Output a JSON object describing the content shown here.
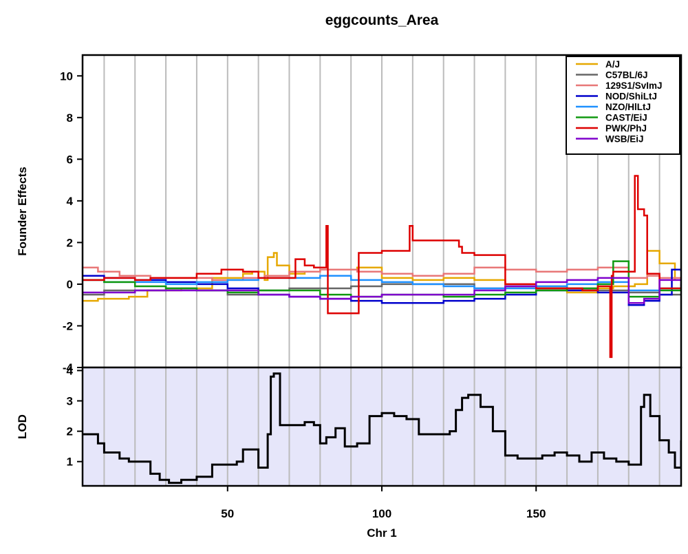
{
  "chart_data": {
    "type": "line",
    "title": "eggcounts_Area",
    "xlabel": "Chr 1",
    "xlim": [
      3,
      197
    ],
    "xticks": [
      50,
      100,
      150
    ],
    "xtick_labels": [
      "50",
      "100",
      "150"
    ],
    "chromosome_band_lines": [
      10,
      20,
      30,
      40,
      50,
      60,
      70,
      80,
      90,
      100,
      110,
      120,
      130,
      140,
      150,
      160,
      170,
      180,
      190
    ],
    "panels": [
      {
        "ylabel": "Founder Effects",
        "ylim": [
          -4,
          11
        ],
        "yticks": [
          -4,
          -2,
          0,
          2,
          4,
          6,
          8,
          10
        ],
        "ytick_labels": [
          "-4",
          "-2",
          "0",
          "2",
          "4",
          "6",
          "8",
          "10"
        ],
        "background": "#ffffff",
        "legend_position": "top-right",
        "series": [
          {
            "name": "A/J",
            "color": "#E6A800",
            "x": [
              3,
              8,
              18,
              24,
              35,
              45,
              55,
              58,
              62,
              63,
              65,
              66,
              70,
              75,
              80,
              92,
              100,
              110,
              120,
              130,
              140,
              150,
              160,
              170,
              175,
              182,
              186,
              190,
              195
            ],
            "y": [
              -0.8,
              -0.7,
              -0.6,
              -0.3,
              -0.2,
              0.3,
              0.5,
              0.6,
              0.2,
              1.3,
              1.5,
              0.9,
              0.5,
              0.6,
              0.7,
              0.8,
              0.3,
              0.2,
              0.3,
              0.2,
              -0.1,
              -0.2,
              -0.4,
              -0.2,
              -0.1,
              0.0,
              1.6,
              1.0,
              0.2
            ]
          },
          {
            "name": "C57BL/6J",
            "color": "#666666",
            "x": [
              3,
              10,
              20,
              30,
              40,
              50,
              60,
              70,
              80,
              90,
              100,
              110,
              120,
              130,
              140,
              150,
              160,
              170,
              180,
              190,
              197
            ],
            "y": [
              -0.5,
              -0.3,
              -0.3,
              -0.2,
              -0.3,
              -0.5,
              -0.3,
              -0.2,
              -0.2,
              -0.1,
              0.0,
              0.0,
              0.0,
              -0.2,
              -0.1,
              -0.1,
              -0.2,
              -0.3,
              -0.4,
              -0.5,
              -0.5
            ]
          },
          {
            "name": "129S1/SvImJ",
            "color": "#E87777",
            "x": [
              3,
              8,
              15,
              25,
              35,
              45,
              55,
              62,
              70,
              80,
              92,
              100,
              110,
              120,
              130,
              140,
              150,
              160,
              170,
              180,
              186,
              190,
              197
            ],
            "y": [
              0.8,
              0.6,
              0.4,
              0.3,
              0.3,
              0.2,
              0.3,
              0.4,
              0.6,
              0.7,
              0.6,
              0.5,
              0.4,
              0.5,
              0.8,
              0.7,
              0.6,
              0.7,
              0.8,
              0.3,
              0.4,
              0.3,
              0.2
            ]
          },
          {
            "name": "NOD/ShiLtJ",
            "color": "#0000CC",
            "x": [
              3,
              10,
              20,
              30,
              40,
              50,
              60,
              70,
              80,
              90,
              100,
              110,
              120,
              130,
              140,
              150,
              160,
              170,
              180,
              185,
              190,
              194,
              197
            ],
            "y": [
              0.4,
              0.3,
              0.2,
              0.1,
              0.0,
              -0.2,
              -0.5,
              -0.6,
              -0.7,
              -0.8,
              -0.9,
              -0.9,
              -0.8,
              -0.7,
              -0.5,
              -0.3,
              -0.3,
              -0.4,
              -1.0,
              -0.8,
              -0.5,
              0.7,
              0.6
            ]
          },
          {
            "name": "NZO/HlLtJ",
            "color": "#1E90FF",
            "x": [
              3,
              10,
              20,
              30,
              40,
              50,
              60,
              70,
              80,
              90,
              100,
              110,
              120,
              130,
              140,
              150,
              160,
              170,
              180,
              190,
              197
            ],
            "y": [
              0.2,
              0.1,
              0.1,
              0.0,
              0.1,
              0.2,
              0.3,
              0.3,
              0.4,
              0.2,
              0.1,
              0.0,
              -0.1,
              -0.2,
              -0.2,
              -0.1,
              0.0,
              0.1,
              -0.3,
              -0.2,
              0.0
            ]
          },
          {
            "name": "CAST/EiJ",
            "color": "#119911",
            "x": [
              3,
              10,
              20,
              30,
              40,
              50,
              60,
              70,
              80,
              90,
              100,
              110,
              120,
              130,
              140,
              150,
              160,
              170,
              175,
              180,
              190,
              197
            ],
            "y": [
              0.2,
              0.1,
              -0.1,
              -0.2,
              -0.3,
              -0.4,
              -0.3,
              -0.3,
              -0.5,
              -0.6,
              -0.5,
              -0.5,
              -0.6,
              -0.5,
              -0.4,
              -0.3,
              -0.2,
              0.0,
              1.1,
              -0.6,
              -0.3,
              -0.2
            ]
          },
          {
            "name": "PWK/PhJ",
            "color": "#DD0000",
            "x": [
              3,
              10,
              20,
              25,
              30,
              40,
              48,
              50,
              55,
              60,
              65,
              72,
              75,
              78,
              80,
              82,
              82.5,
              92,
              92.5,
              100,
              108,
              109,
              110,
              120,
              125,
              126,
              130,
              140,
              150,
              160,
              165,
              170,
              174,
              174.5,
              175,
              180,
              182,
              183,
              185,
              186,
              190,
              197
            ],
            "y": [
              0.2,
              0.3,
              0.2,
              0.3,
              0.3,
              0.5,
              0.7,
              0.7,
              0.6,
              0.3,
              0.3,
              1.2,
              0.9,
              0.8,
              0.8,
              2.8,
              -1.4,
              -1.4,
              1.5,
              1.6,
              1.6,
              2.8,
              2.1,
              2.1,
              1.8,
              1.5,
              1.4,
              0.0,
              -0.2,
              -0.2,
              -0.3,
              -0.1,
              -3.5,
              0.4,
              0.6,
              0.6,
              5.2,
              3.6,
              3.3,
              0.5,
              -0.2,
              0.0
            ]
          },
          {
            "name": "WSB/EiJ",
            "color": "#7F00CC",
            "x": [
              3,
              10,
              20,
              30,
              40,
              50,
              60,
              70,
              80,
              90,
              100,
              110,
              120,
              130,
              140,
              150,
              160,
              170,
              180,
              185,
              190,
              197
            ],
            "y": [
              -0.4,
              -0.4,
              -0.3,
              -0.3,
              -0.3,
              -0.3,
              -0.5,
              -0.6,
              -0.7,
              -0.6,
              -0.5,
              -0.5,
              -0.5,
              -0.3,
              -0.1,
              0.1,
              0.2,
              0.3,
              -0.9,
              -0.7,
              0.2,
              -0.1
            ]
          }
        ]
      },
      {
        "ylabel": "LOD",
        "ylim": [
          0.2,
          4.1
        ],
        "yticks": [
          1,
          2,
          3,
          4
        ],
        "ytick_labels": [
          "1",
          "2",
          "3",
          "4"
        ],
        "background": "#E6E6FA",
        "series": [
          {
            "name": "",
            "color": "#000000",
            "x": [
              3,
              5,
              8,
              10,
              15,
              18,
              25,
              28,
              31,
              35,
              40,
              45,
              50,
              53,
              55,
              58,
              60,
              62,
              63,
              64,
              65,
              67,
              70,
              75,
              78,
              80,
              82,
              85,
              88,
              92,
              96,
              100,
              104,
              108,
              112,
              118,
              122,
              124,
              126,
              128,
              132,
              136,
              140,
              144,
              148,
              152,
              156,
              160,
              164,
              168,
              172,
              176,
              180,
              184,
              185,
              187,
              190,
              193,
              195,
              197
            ],
            "y": [
              1.9,
              1.9,
              1.6,
              1.3,
              1.1,
              1.0,
              0.6,
              0.4,
              0.3,
              0.4,
              0.5,
              0.9,
              0.9,
              1.0,
              1.4,
              1.4,
              0.8,
              0.8,
              1.9,
              3.8,
              3.9,
              2.2,
              2.2,
              2.3,
              2.2,
              1.6,
              1.8,
              2.1,
              1.5,
              1.6,
              2.5,
              2.6,
              2.5,
              2.4,
              1.9,
              1.9,
              2.0,
              2.7,
              3.1,
              3.2,
              2.8,
              2.0,
              1.2,
              1.1,
              1.1,
              1.2,
              1.3,
              1.2,
              1.0,
              1.3,
              1.1,
              1.0,
              0.9,
              2.8,
              3.2,
              2.5,
              1.7,
              1.3,
              0.8,
              1.7
            ]
          }
        ]
      }
    ]
  }
}
